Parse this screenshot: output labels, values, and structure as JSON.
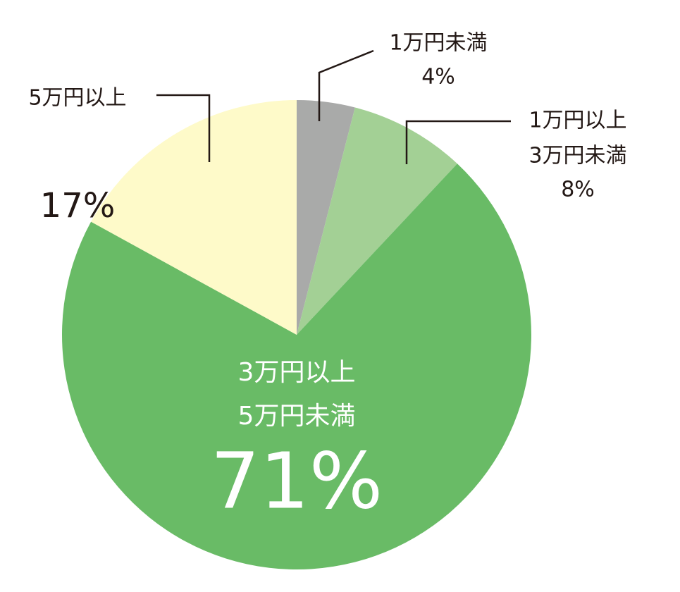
{
  "chart_data": {
    "type": "pie",
    "categories": [
      [
        "1万円未満"
      ],
      [
        "1万円以上",
        "3万円未満"
      ],
      [
        "3万円以上",
        "5万円未満"
      ],
      [
        "5万円以上"
      ]
    ],
    "values": [
      4,
      8,
      71,
      17
    ],
    "value_labels": [
      "4%",
      "8%",
      "71%",
      "17%"
    ],
    "colors": [
      "#a9aaa9",
      "#a3d095",
      "#69bb66",
      "#fefac9"
    ]
  }
}
